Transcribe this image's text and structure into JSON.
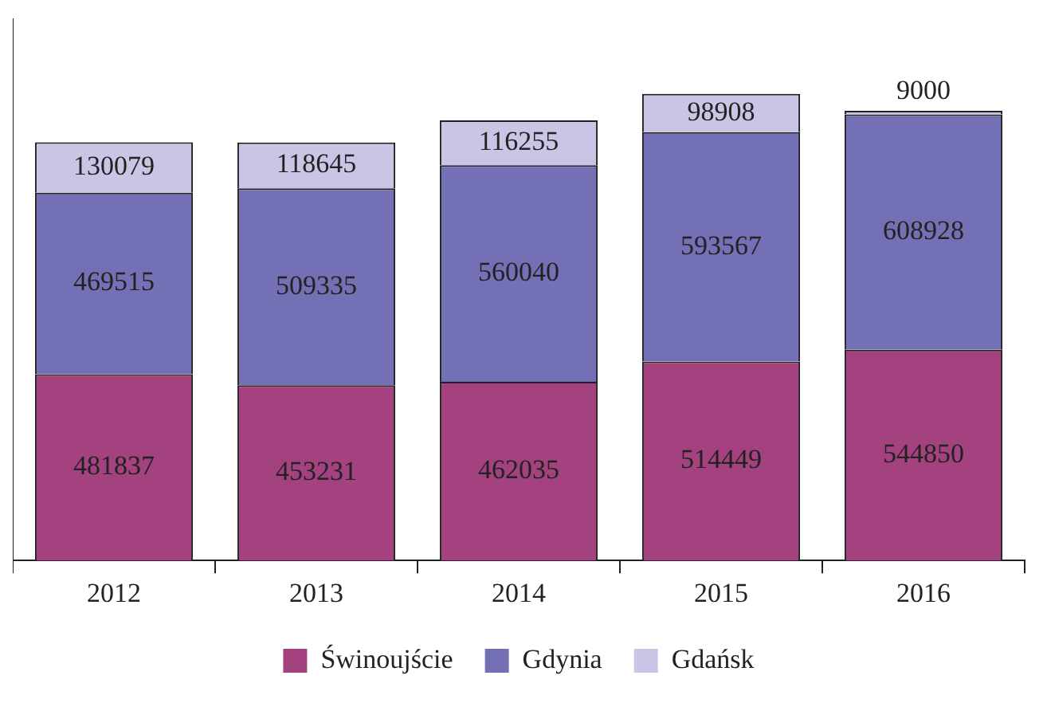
{
  "chart_data": {
    "type": "bar",
    "stacked": true,
    "categories": [
      "2012",
      "2013",
      "2014",
      "2015",
      "2016"
    ],
    "series": [
      {
        "name": "Świnoujście",
        "color": "#a3427f",
        "values": [
          481837,
          453231,
          462035,
          514449,
          544850
        ]
      },
      {
        "name": "Gdynia",
        "color": "#7470b6",
        "values": [
          469515,
          509335,
          560040,
          593567,
          608928
        ]
      },
      {
        "name": "Gdańsk",
        "color": "#cbc5e5",
        "values": [
          130079,
          118645,
          116255,
          98908,
          9000
        ]
      }
    ],
    "data_labels": true,
    "legend": "bottom",
    "grid": false
  }
}
